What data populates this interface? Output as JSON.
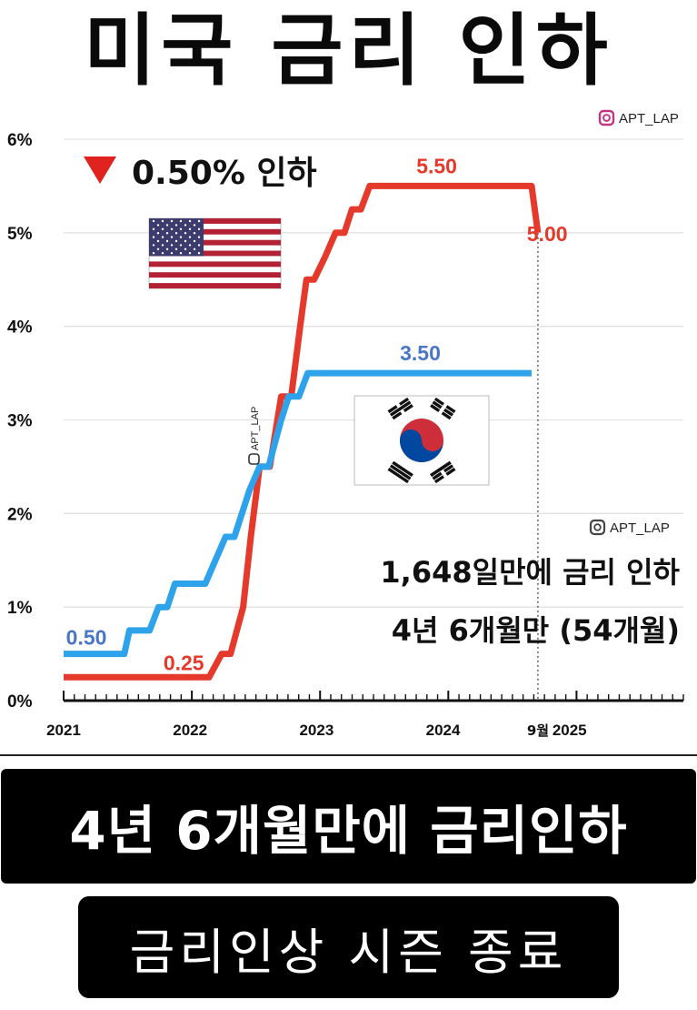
{
  "title": "미국 금리 인하",
  "chart_data": {
    "type": "line",
    "x_axis": {
      "range": [
        2021.0,
        2025.9
      ],
      "tick_labels": [
        "2021",
        "2022",
        "2023",
        "2024",
        "2025"
      ],
      "month_label": "9월"
    },
    "y_axis": {
      "range": [
        0,
        6
      ],
      "tick_labels": [
        "0%",
        "1%",
        "2%",
        "3%",
        "4%",
        "5%",
        "6%"
      ]
    },
    "grid": true,
    "series": [
      {
        "key": "us",
        "color": "#e53a2b",
        "points": [
          [
            2021.0,
            0.25
          ],
          [
            2022.15,
            0.25
          ],
          [
            2022.25,
            0.5
          ],
          [
            2022.32,
            0.5
          ],
          [
            2022.42,
            1.0
          ],
          [
            2022.48,
            1.75
          ],
          [
            2022.55,
            2.5
          ],
          [
            2022.63,
            2.5
          ],
          [
            2022.72,
            3.25
          ],
          [
            2022.8,
            3.25
          ],
          [
            2022.87,
            4.0
          ],
          [
            2022.92,
            4.5
          ],
          [
            2022.98,
            4.5
          ],
          [
            2023.07,
            4.75
          ],
          [
            2023.15,
            5.0
          ],
          [
            2023.22,
            5.0
          ],
          [
            2023.28,
            5.25
          ],
          [
            2023.35,
            5.25
          ],
          [
            2023.42,
            5.5
          ],
          [
            2024.7,
            5.5
          ],
          [
            2024.75,
            5.0
          ]
        ]
      },
      {
        "key": "kr",
        "color": "#2ea2ea",
        "points": [
          [
            2021.0,
            0.5
          ],
          [
            2021.48,
            0.5
          ],
          [
            2021.52,
            0.75
          ],
          [
            2021.68,
            0.75
          ],
          [
            2021.75,
            1.0
          ],
          [
            2021.82,
            1.0
          ],
          [
            2021.88,
            1.25
          ],
          [
            2022.12,
            1.25
          ],
          [
            2022.2,
            1.5
          ],
          [
            2022.28,
            1.75
          ],
          [
            2022.35,
            1.75
          ],
          [
            2022.47,
            2.25
          ],
          [
            2022.55,
            2.5
          ],
          [
            2022.62,
            2.5
          ],
          [
            2022.72,
            3.0
          ],
          [
            2022.78,
            3.25
          ],
          [
            2022.86,
            3.25
          ],
          [
            2022.93,
            3.5
          ],
          [
            2024.7,
            3.5
          ]
        ]
      }
    ],
    "value_labels": [
      {
        "series": "us",
        "text": "5.50",
        "x": 2023.95,
        "y": 5.5
      },
      {
        "series": "us",
        "text": "5.00",
        "x": 2024.95,
        "y": 5.0
      },
      {
        "series": "us",
        "text": "0.25",
        "x": 2021.95,
        "y": 0.25
      },
      {
        "series": "kr",
        "text": "3.50",
        "x": 2023.82,
        "y": 3.5
      },
      {
        "series": "kr",
        "text": "0.50",
        "x": 2021.18,
        "y": 0.5
      }
    ],
    "cut_annotation": "0.50% 인하",
    "notes": [
      "1,648일만에 금리 인하",
      "4년 6개월만 (54개월)"
    ],
    "watermark": "APT_LAP",
    "watermark_rotated": "APT_LAP"
  },
  "banners": [
    "4년 6개월만에 금리인하",
    "금리인상 시즌 종료"
  ]
}
